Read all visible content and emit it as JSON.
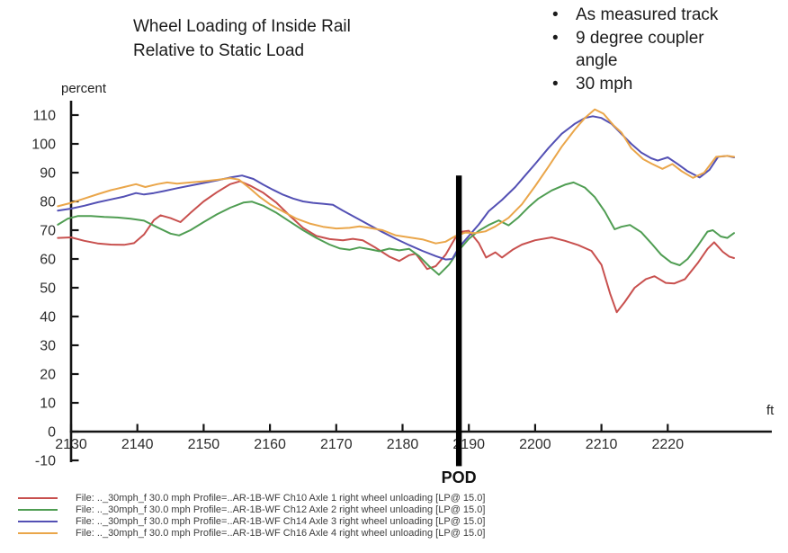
{
  "title": {
    "line1": "Wheel Loading of Inside Rail",
    "line2": "Relative to Static Load"
  },
  "notes": {
    "bullet_char": "•",
    "items": [
      "As measured track",
      "9 degree coupler angle",
      "30 mph"
    ]
  },
  "chart_data": {
    "type": "line",
    "title": "Wheel Loading of Inside Rail Relative to Static Load",
    "x_label": "ft",
    "y_label": "percent",
    "x_range": [
      2128,
      2236
    ],
    "y_range": [
      -10,
      115
    ],
    "grid": false,
    "legend_position": "bottom",
    "x_ticks": [
      2130,
      2140,
      2150,
      2160,
      2170,
      2180,
      2190,
      2200,
      2210,
      2220
    ],
    "y_ticks": [
      -10,
      0,
      10,
      20,
      30,
      40,
      50,
      60,
      70,
      80,
      90,
      100,
      110
    ],
    "pod_marker": {
      "label": "POD",
      "x": 2188.5,
      "y_top": 89,
      "y_bottom": -12,
      "color": "#000000"
    },
    "series": [
      {
        "name": "Ch10 Axle 1 right wheel unloading",
        "color": "#c8504e",
        "points": [
          [
            2128,
            67.3
          ],
          [
            2130,
            67.5
          ],
          [
            2132,
            66.3
          ],
          [
            2134,
            65.4
          ],
          [
            2136,
            65
          ],
          [
            2138,
            64.9
          ],
          [
            2139.5,
            65.5
          ],
          [
            2141,
            68.5
          ],
          [
            2142.5,
            73.5
          ],
          [
            2143.5,
            75.2
          ],
          [
            2145,
            74.2
          ],
          [
            2146.5,
            72.8
          ],
          [
            2148,
            76
          ],
          [
            2150,
            80
          ],
          [
            2152,
            83.2
          ],
          [
            2154,
            86
          ],
          [
            2155.5,
            87
          ],
          [
            2157,
            85.5
          ],
          [
            2159,
            83
          ],
          [
            2161,
            79.5
          ],
          [
            2163,
            75
          ],
          [
            2165,
            70.8
          ],
          [
            2167,
            68
          ],
          [
            2169,
            66.9
          ],
          [
            2171,
            66.5
          ],
          [
            2172.5,
            67
          ],
          [
            2174,
            66.5
          ],
          [
            2176,
            63.8
          ],
          [
            2178,
            60.8
          ],
          [
            2179.5,
            59.3
          ],
          [
            2181,
            61.3
          ],
          [
            2182,
            61.8
          ],
          [
            2183.7,
            56.5
          ],
          [
            2185,
            57.5
          ],
          [
            2186.5,
            61.5
          ],
          [
            2188,
            67.5
          ],
          [
            2189,
            69.5
          ],
          [
            2190,
            69.8
          ],
          [
            2191.5,
            65.5
          ],
          [
            2192.6,
            60.5
          ],
          [
            2194,
            62.3
          ],
          [
            2195,
            60.5
          ],
          [
            2196.6,
            63.2
          ],
          [
            2198,
            65
          ],
          [
            2200,
            66.5
          ],
          [
            2202.5,
            67.5
          ],
          [
            2204.5,
            66.3
          ],
          [
            2206.5,
            64.8
          ],
          [
            2208.5,
            62.8
          ],
          [
            2210,
            58
          ],
          [
            2211.3,
            48
          ],
          [
            2212.3,
            41.5
          ],
          [
            2213.5,
            45
          ],
          [
            2215,
            50
          ],
          [
            2216.7,
            53
          ],
          [
            2218,
            54
          ],
          [
            2219.7,
            51.7
          ],
          [
            2221,
            51.5
          ],
          [
            2222.6,
            53
          ],
          [
            2224.5,
            58.5
          ],
          [
            2226,
            63.5
          ],
          [
            2227,
            65.8
          ],
          [
            2228.3,
            62.5
          ],
          [
            2229.3,
            60.8
          ],
          [
            2230,
            60.3
          ]
        ]
      },
      {
        "name": "Ch12 Axle 2 right wheel unloading",
        "color": "#4f9d52",
        "points": [
          [
            2128,
            71.9
          ],
          [
            2129.5,
            74
          ],
          [
            2131,
            74.9
          ],
          [
            2133,
            74.9
          ],
          [
            2135,
            74.6
          ],
          [
            2137,
            74.4
          ],
          [
            2139,
            74
          ],
          [
            2141,
            73.3
          ],
          [
            2143,
            71
          ],
          [
            2145,
            68.8
          ],
          [
            2146.3,
            68.2
          ],
          [
            2148,
            70
          ],
          [
            2150,
            72.8
          ],
          [
            2152,
            75.5
          ],
          [
            2154,
            77.8
          ],
          [
            2156,
            79.6
          ],
          [
            2157.3,
            79.9
          ],
          [
            2159,
            78.5
          ],
          [
            2161,
            76
          ],
          [
            2163,
            73
          ],
          [
            2165,
            70
          ],
          [
            2167,
            67.3
          ],
          [
            2169,
            65
          ],
          [
            2170.5,
            63.7
          ],
          [
            2172,
            63.2
          ],
          [
            2173.5,
            64
          ],
          [
            2175,
            63.4
          ],
          [
            2176.5,
            62.7
          ],
          [
            2178,
            63.6
          ],
          [
            2179.5,
            63
          ],
          [
            2181,
            63.5
          ],
          [
            2182.5,
            61
          ],
          [
            2184,
            57.5
          ],
          [
            2185.5,
            54.5
          ],
          [
            2187,
            58
          ],
          [
            2188.5,
            63
          ],
          [
            2190,
            67
          ],
          [
            2191.5,
            69.8
          ],
          [
            2193,
            71.8
          ],
          [
            2194.5,
            73.4
          ],
          [
            2196,
            71.7
          ],
          [
            2197.5,
            74.5
          ],
          [
            2199,
            78
          ],
          [
            2200.5,
            81
          ],
          [
            2202.5,
            83.8
          ],
          [
            2204.5,
            85.8
          ],
          [
            2205.8,
            86.6
          ],
          [
            2207.5,
            84.8
          ],
          [
            2209,
            81.5
          ],
          [
            2210.5,
            76.5
          ],
          [
            2212,
            70.3
          ],
          [
            2213,
            71.2
          ],
          [
            2214.3,
            71.8
          ],
          [
            2216,
            69.3
          ],
          [
            2217.5,
            65.5
          ],
          [
            2219,
            61.5
          ],
          [
            2220.5,
            58.8
          ],
          [
            2221.8,
            57.8
          ],
          [
            2223,
            60
          ],
          [
            2224.5,
            64.5
          ],
          [
            2226,
            69.5
          ],
          [
            2226.8,
            70
          ],
          [
            2228,
            67.8
          ],
          [
            2229,
            67.3
          ],
          [
            2230,
            69
          ]
        ]
      },
      {
        "name": "Ch14 Axle 3 right wheel unloading",
        "color": "#5350b4",
        "points": [
          [
            2128,
            76.8
          ],
          [
            2130,
            77.5
          ],
          [
            2132,
            78.5
          ],
          [
            2134,
            79.7
          ],
          [
            2136,
            80.7
          ],
          [
            2138,
            81.7
          ],
          [
            2139.8,
            82.9
          ],
          [
            2141,
            82.4
          ],
          [
            2142.5,
            82.9
          ],
          [
            2144,
            83.6
          ],
          [
            2146,
            84.6
          ],
          [
            2148,
            85.5
          ],
          [
            2150,
            86.4
          ],
          [
            2152,
            87.3
          ],
          [
            2154,
            88.3
          ],
          [
            2155.8,
            89
          ],
          [
            2157.5,
            87.8
          ],
          [
            2159,
            85.8
          ],
          [
            2160.5,
            84
          ],
          [
            2162,
            82.3
          ],
          [
            2163.5,
            81
          ],
          [
            2165,
            80
          ],
          [
            2166.5,
            79.5
          ],
          [
            2168,
            79.2
          ],
          [
            2169.5,
            78.8
          ],
          [
            2171,
            76.8
          ],
          [
            2173,
            74.3
          ],
          [
            2175,
            71.8
          ],
          [
            2177,
            69.3
          ],
          [
            2179,
            67
          ],
          [
            2181,
            64.8
          ],
          [
            2183,
            62.8
          ],
          [
            2185,
            61
          ],
          [
            2186.5,
            59.8
          ],
          [
            2187.5,
            60
          ],
          [
            2188.5,
            64
          ],
          [
            2190,
            68
          ],
          [
            2191.5,
            72
          ],
          [
            2193,
            76.6
          ],
          [
            2195,
            80.5
          ],
          [
            2197,
            85
          ],
          [
            2198.5,
            89
          ],
          [
            2200,
            93
          ],
          [
            2202,
            98.5
          ],
          [
            2204,
            103.5
          ],
          [
            2206,
            107
          ],
          [
            2207.5,
            109
          ],
          [
            2208.7,
            109.6
          ],
          [
            2210,
            109
          ],
          [
            2211.5,
            107
          ],
          [
            2213,
            103.5
          ],
          [
            2214.5,
            100
          ],
          [
            2216,
            97
          ],
          [
            2217.5,
            95
          ],
          [
            2218.5,
            94.2
          ],
          [
            2220,
            95.3
          ],
          [
            2221.5,
            93
          ],
          [
            2223,
            90.5
          ],
          [
            2224.8,
            88.3
          ],
          [
            2226.3,
            91
          ],
          [
            2227.6,
            95.5
          ],
          [
            2229,
            95.8
          ],
          [
            2230,
            95.3
          ]
        ]
      },
      {
        "name": "Ch16 Axle 4 right wheel unloading",
        "color": "#eaa64a",
        "points": [
          [
            2128,
            78.3
          ],
          [
            2130,
            79.5
          ],
          [
            2132,
            81
          ],
          [
            2134,
            82.5
          ],
          [
            2136,
            83.9
          ],
          [
            2138,
            85
          ],
          [
            2139.8,
            86
          ],
          [
            2141.2,
            85
          ],
          [
            2143,
            86
          ],
          [
            2144.5,
            86.6
          ],
          [
            2146,
            86.2
          ],
          [
            2148,
            86.6
          ],
          [
            2150,
            87
          ],
          [
            2152,
            87.5
          ],
          [
            2154,
            88.1
          ],
          [
            2155.3,
            87.6
          ],
          [
            2157,
            84.5
          ],
          [
            2158.5,
            81.5
          ],
          [
            2160,
            79
          ],
          [
            2162,
            76.5
          ],
          [
            2164,
            74
          ],
          [
            2166,
            72.3
          ],
          [
            2168,
            71.2
          ],
          [
            2170,
            70.6
          ],
          [
            2172,
            70.8
          ],
          [
            2173.5,
            71.3
          ],
          [
            2175,
            70.8
          ],
          [
            2177,
            70
          ],
          [
            2179,
            68.2
          ],
          [
            2181,
            67.5
          ],
          [
            2183,
            66.8
          ],
          [
            2185,
            65.4
          ],
          [
            2186.5,
            66
          ],
          [
            2188,
            68
          ],
          [
            2189.5,
            69.2
          ],
          [
            2191,
            69
          ],
          [
            2192.5,
            69.6
          ],
          [
            2194,
            71.3
          ],
          [
            2196,
            74.3
          ],
          [
            2198,
            79
          ],
          [
            2200,
            85.3
          ],
          [
            2202,
            92
          ],
          [
            2204,
            99
          ],
          [
            2206,
            105
          ],
          [
            2207.5,
            109
          ],
          [
            2209,
            112
          ],
          [
            2210.3,
            110.5
          ],
          [
            2211.8,
            106.5
          ],
          [
            2213,
            104
          ],
          [
            2214.5,
            98.5
          ],
          [
            2216.3,
            94.7
          ],
          [
            2217.6,
            93.1
          ],
          [
            2219.2,
            91.3
          ],
          [
            2220.7,
            93
          ],
          [
            2222.1,
            90.5
          ],
          [
            2223.8,
            88.2
          ],
          [
            2225.5,
            90
          ],
          [
            2227.3,
            95.5
          ],
          [
            2229,
            95.8
          ],
          [
            2230,
            95.5
          ]
        ]
      }
    ]
  },
  "legend": {
    "items": [
      {
        "label": "File: .._30mph_f 30.0 mph Profile=..AR-1B-WF Ch10 Axle 1 right wheel unloading  [LP@ 15.0]",
        "color": "#c8504e"
      },
      {
        "label": "File: .._30mph_f 30.0 mph Profile=..AR-1B-WF Ch12 Axle 2 right wheel unloading  [LP@ 15.0]",
        "color": "#4f9d52"
      },
      {
        "label": "File: .._30mph_f 30.0 mph Profile=..AR-1B-WF Ch14 Axle 3 right wheel unloading  [LP@ 15.0]",
        "color": "#5350b4"
      },
      {
        "label": "File: .._30mph_f 30.0 mph Profile=..AR-1B-WF Ch16 Axle 4 right wheel unloading  [LP@ 15.0]",
        "color": "#eaa64a"
      }
    ]
  }
}
